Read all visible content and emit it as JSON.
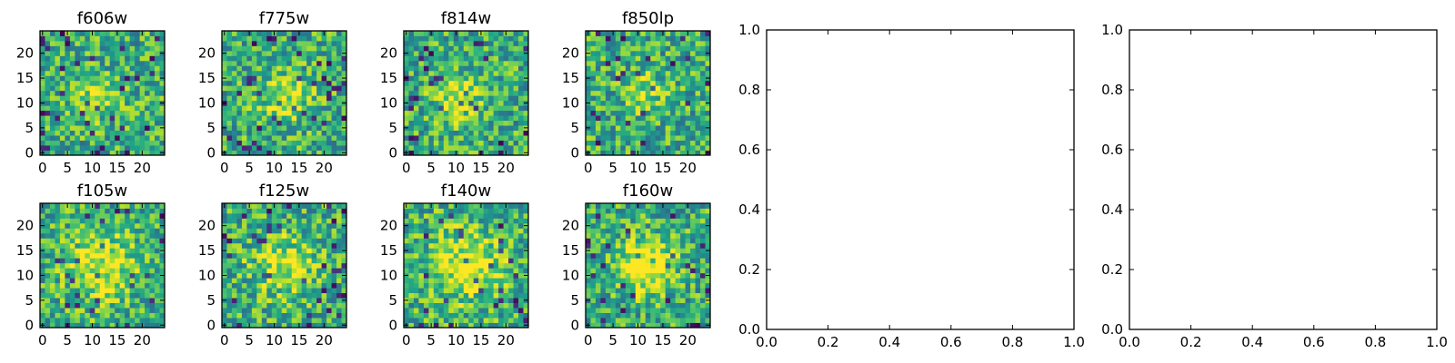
{
  "chart_data": [
    {
      "type": "heatmap",
      "title": "f606w",
      "xlim": [
        -0.5,
        24.5
      ],
      "ylim": [
        -0.5,
        24.5
      ],
      "xticks": [
        "0",
        "5",
        "10",
        "15",
        "20"
      ],
      "yticks": [
        "0",
        "5",
        "10",
        "15",
        "20"
      ],
      "colormap": "viridis",
      "size": [
        25,
        25
      ],
      "random_seed": 11,
      "blob": {
        "cx": 11,
        "cy": 11,
        "amp": 0.25,
        "sigma": 3
      },
      "grid": false
    },
    {
      "type": "heatmap",
      "title": "f775w",
      "xlim": [
        -0.5,
        24.5
      ],
      "ylim": [
        -0.5,
        24.5
      ],
      "xticks": [
        "0",
        "5",
        "10",
        "15",
        "20"
      ],
      "yticks": [
        "0",
        "5",
        "10",
        "15",
        "20"
      ],
      "colormap": "viridis",
      "size": [
        25,
        25
      ],
      "random_seed": 23,
      "blob": {
        "cx": 12,
        "cy": 11,
        "amp": 0.3,
        "sigma": 3.5
      },
      "grid": false
    },
    {
      "type": "heatmap",
      "title": "f814w",
      "xlim": [
        -0.5,
        24.5
      ],
      "ylim": [
        -0.5,
        24.5
      ],
      "xticks": [
        "0",
        "5",
        "10",
        "15",
        "20"
      ],
      "yticks": [
        "0",
        "5",
        "10",
        "15",
        "20"
      ],
      "colormap": "viridis",
      "size": [
        25,
        25
      ],
      "random_seed": 37,
      "blob": {
        "cx": 10,
        "cy": 11,
        "amp": 0.35,
        "sigma": 3
      },
      "grid": false
    },
    {
      "type": "heatmap",
      "title": "f850lp",
      "xlim": [
        -0.5,
        24.5
      ],
      "ylim": [
        -0.5,
        24.5
      ],
      "xticks": [
        "0",
        "5",
        "10",
        "15",
        "20"
      ],
      "yticks": [
        "0",
        "5",
        "10",
        "15",
        "20"
      ],
      "colormap": "viridis",
      "size": [
        25,
        25
      ],
      "random_seed": 41,
      "blob": {
        "cx": 12,
        "cy": 12,
        "amp": 0.2,
        "sigma": 3
      },
      "grid": false
    },
    {
      "type": "heatmap",
      "title": "f105w",
      "xlim": [
        -0.5,
        24.5
      ],
      "ylim": [
        -0.5,
        24.5
      ],
      "xticks": [
        "0",
        "5",
        "10",
        "15",
        "20"
      ],
      "yticks": [
        "0",
        "5",
        "10",
        "15",
        "20"
      ],
      "colormap": "viridis",
      "size": [
        25,
        25
      ],
      "random_seed": 53,
      "blob": {
        "cx": 12,
        "cy": 12,
        "amp": 0.35,
        "sigma": 5
      },
      "grid": false
    },
    {
      "type": "heatmap",
      "title": "f125w",
      "xlim": [
        -0.5,
        24.5
      ],
      "ylim": [
        -0.5,
        24.5
      ],
      "xticks": [
        "0",
        "5",
        "10",
        "15",
        "20"
      ],
      "yticks": [
        "0",
        "5",
        "10",
        "15",
        "20"
      ],
      "colormap": "viridis",
      "size": [
        25,
        25
      ],
      "random_seed": 67,
      "blob": {
        "cx": 12,
        "cy": 12,
        "amp": 0.3,
        "sigma": 4.5
      },
      "grid": false
    },
    {
      "type": "heatmap",
      "title": "f140w",
      "xlim": [
        -0.5,
        24.5
      ],
      "ylim": [
        -0.5,
        24.5
      ],
      "xticks": [
        "0",
        "5",
        "10",
        "15",
        "20"
      ],
      "yticks": [
        "0",
        "5",
        "10",
        "15",
        "20"
      ],
      "colormap": "viridis",
      "size": [
        25,
        25
      ],
      "random_seed": 79,
      "blob": {
        "cx": 12,
        "cy": 12,
        "amp": 0.35,
        "sigma": 5
      },
      "grid": false
    },
    {
      "type": "heatmap",
      "title": "f160w",
      "xlim": [
        -0.5,
        24.5
      ],
      "ylim": [
        -0.5,
        24.5
      ],
      "xticks": [
        "0",
        "5",
        "10",
        "15",
        "20"
      ],
      "yticks": [
        "0",
        "5",
        "10",
        "15",
        "20"
      ],
      "colormap": "viridis",
      "size": [
        25,
        25
      ],
      "random_seed": 83,
      "blob": {
        "cx": 12,
        "cy": 12,
        "amp": 0.55,
        "sigma": 3.5
      },
      "grid": false
    },
    {
      "type": "line",
      "title": "",
      "series": [],
      "xlim": [
        0.0,
        1.0
      ],
      "ylim": [
        0.0,
        1.0
      ],
      "xticks": [
        "0.0",
        "0.2",
        "0.4",
        "0.6",
        "0.8",
        "1.0"
      ],
      "yticks": [
        "0.0",
        "0.2",
        "0.4",
        "0.6",
        "0.8",
        "1.0"
      ],
      "grid": false
    },
    {
      "type": "line",
      "title": "",
      "series": [],
      "xlim": [
        0.0,
        1.0
      ],
      "ylim": [
        0.0,
        1.0
      ],
      "xticks": [
        "0.0",
        "0.2",
        "0.4",
        "0.6",
        "0.8",
        "1.0"
      ],
      "yticks": [
        "0.0",
        "0.2",
        "0.4",
        "0.6",
        "0.8",
        "1.0"
      ],
      "grid": false
    }
  ],
  "colors": {
    "background": "#ffffff",
    "axes": "#000000",
    "text": "#000000"
  }
}
